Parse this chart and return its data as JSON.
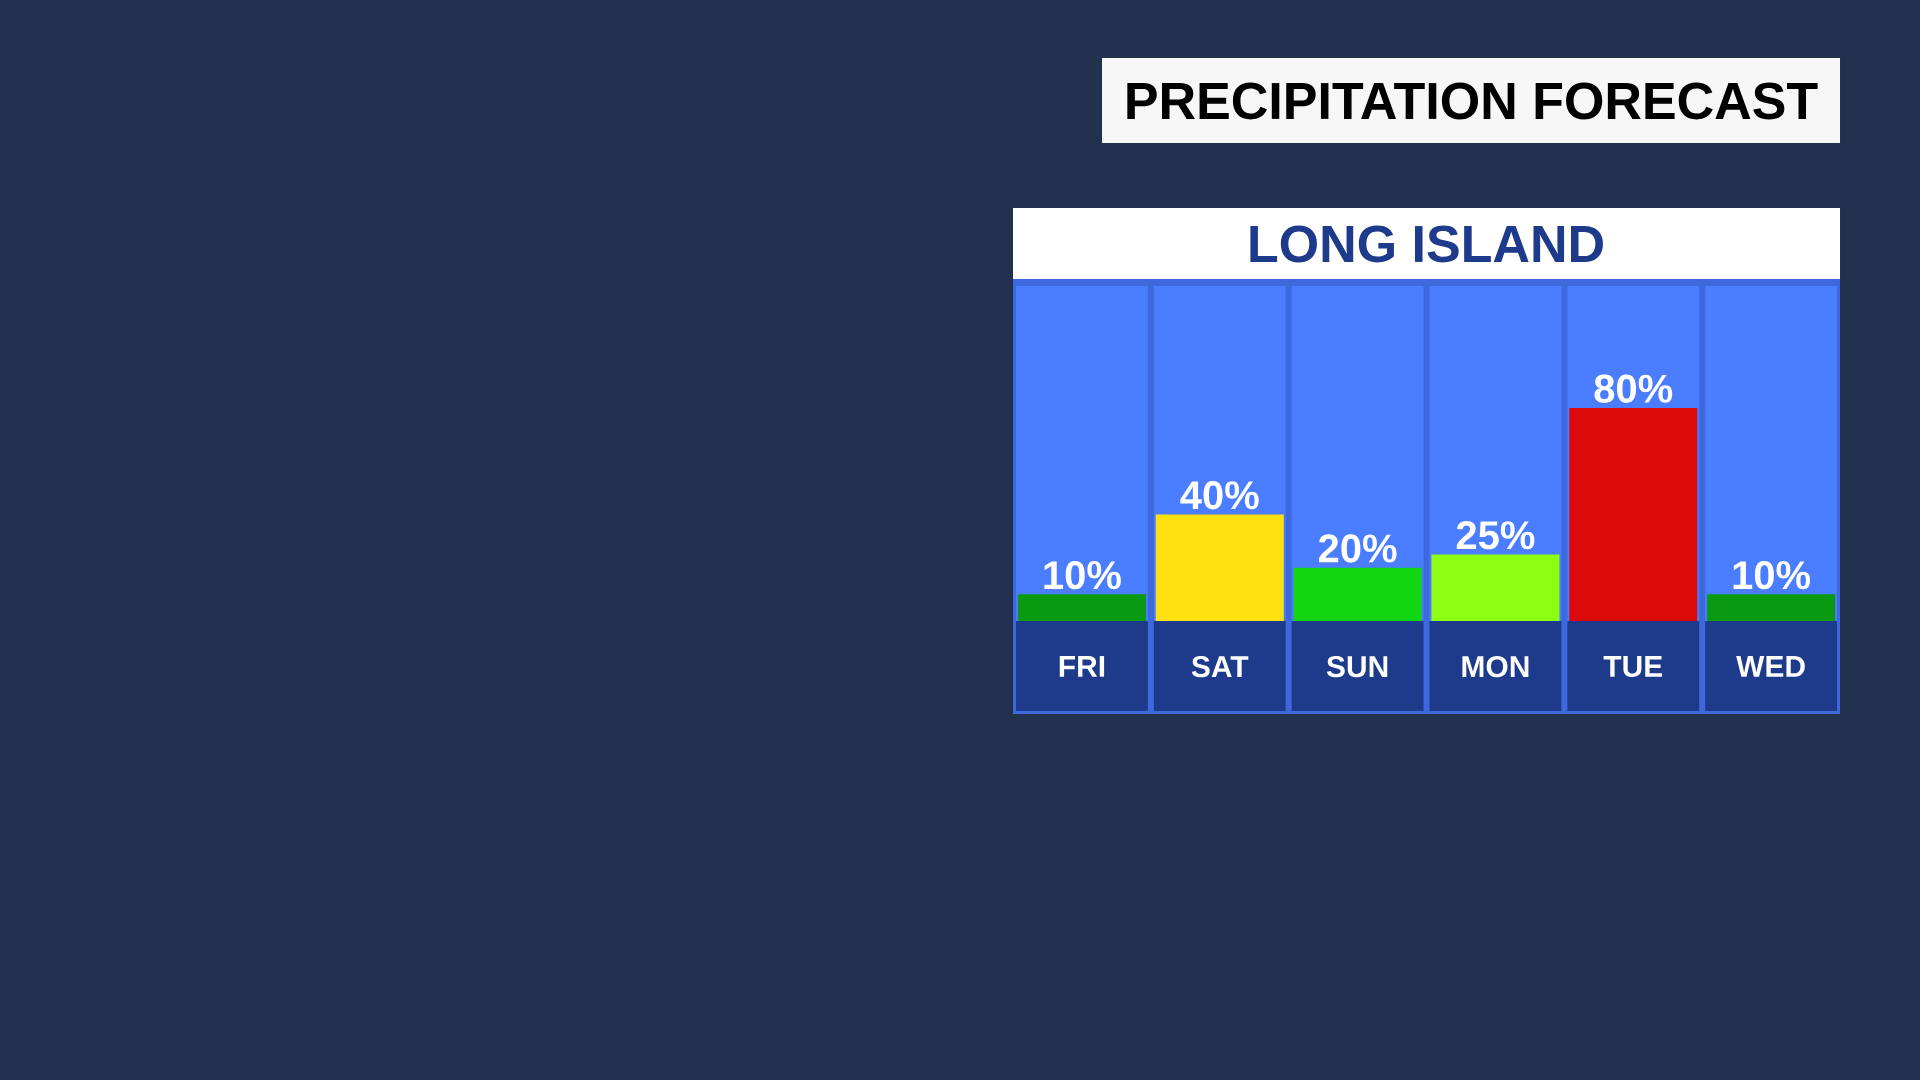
{
  "chart_data": {
    "type": "bar",
    "title": "PRECIPITATION FORECAST",
    "subtitle": "LONG ISLAND",
    "categories": [
      "FRI",
      "SAT",
      "SUN",
      "MON",
      "TUE",
      "WED"
    ],
    "values": [
      10,
      40,
      20,
      25,
      80,
      10
    ],
    "value_labels": [
      "10%",
      "40%",
      "20%",
      "25%",
      "80%",
      "10%"
    ],
    "colors": [
      "#0a9a12",
      "#ffe010",
      "#12d612",
      "#8cff12",
      "#dc0a0a",
      "#0a9a12"
    ]
  }
}
